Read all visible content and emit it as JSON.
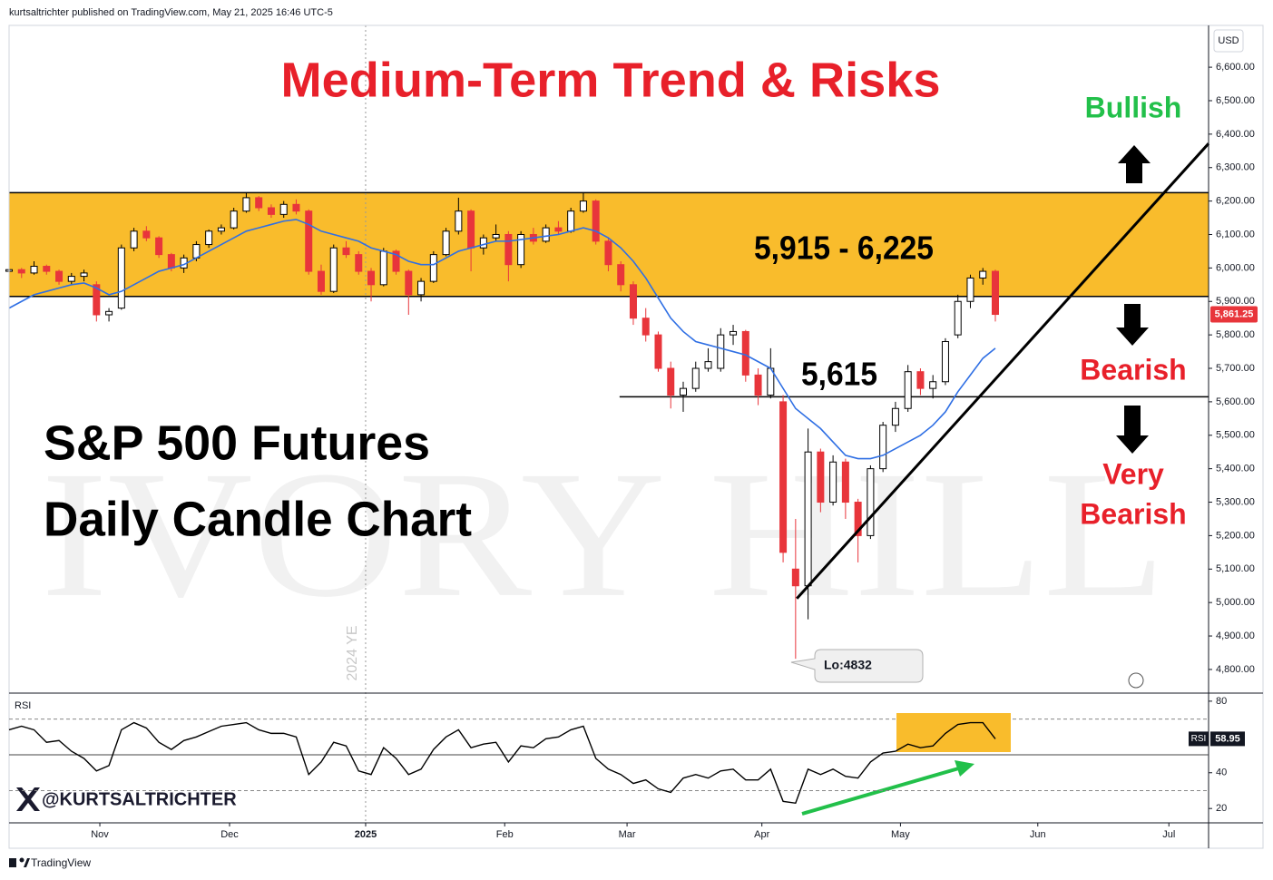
{
  "header": "kurtsaltrichter published on TradingView.com, May 21, 2025 16:46 UTC-5",
  "footer": "TradingView",
  "chart_data": {
    "type": "candlestick",
    "title": "Medium-Term Trend & Risks",
    "subtitle_lines": [
      "S&P 500 Futures",
      "Daily Candle Chart"
    ],
    "currency": "USD",
    "watermark": "IVORY HILL",
    "handle": "@KURTSALTRICHTER",
    "up_color": "#ffffff",
    "down_color": "#e8353b",
    "candles": [
      [
        5990,
        6010,
        5975,
        5995
      ],
      [
        5995,
        6000,
        5970,
        5985
      ],
      [
        5985,
        6020,
        5980,
        6005
      ],
      [
        6005,
        6010,
        5980,
        5990
      ],
      [
        5990,
        5995,
        5950,
        5960
      ],
      [
        5960,
        5985,
        5950,
        5975
      ],
      [
        5975,
        5995,
        5960,
        5985
      ],
      [
        5950,
        5960,
        5840,
        5860
      ],
      [
        5860,
        5880,
        5840,
        5870
      ],
      [
        5880,
        6070,
        5875,
        6060
      ],
      [
        6060,
        6120,
        6050,
        6110
      ],
      [
        6110,
        6125,
        6080,
        6090
      ],
      [
        6090,
        6095,
        6030,
        6040
      ],
      [
        6040,
        6045,
        5990,
        6000
      ],
      [
        6000,
        6040,
        5985,
        6030
      ],
      [
        6030,
        6080,
        6020,
        6070
      ],
      [
        6070,
        6115,
        6060,
        6110
      ],
      [
        6110,
        6130,
        6100,
        6120
      ],
      [
        6120,
        6180,
        6115,
        6170
      ],
      [
        6170,
        6225,
        6165,
        6210
      ],
      [
        6210,
        6215,
        6170,
        6180
      ],
      [
        6180,
        6190,
        6150,
        6160
      ],
      [
        6160,
        6200,
        6150,
        6190
      ],
      [
        6190,
        6205,
        6160,
        6170
      ],
      [
        6170,
        6175,
        5980,
        5990
      ],
      [
        5990,
        6010,
        5920,
        5930
      ],
      [
        5930,
        6070,
        5925,
        6060
      ],
      [
        6060,
        6080,
        6030,
        6040
      ],
      [
        6040,
        6050,
        5980,
        5990
      ],
      [
        5990,
        6000,
        5900,
        5950
      ],
      [
        5950,
        6060,
        5945,
        6050
      ],
      [
        6050,
        6055,
        5980,
        5990
      ],
      [
        5990,
        5995,
        5860,
        5920
      ],
      [
        5920,
        5970,
        5900,
        5960
      ],
      [
        5960,
        6050,
        5955,
        6040
      ],
      [
        6040,
        6120,
        6035,
        6110
      ],
      [
        6110,
        6210,
        6100,
        6170
      ],
      [
        6170,
        6175,
        5990,
        6060
      ],
      [
        6060,
        6100,
        6040,
        6090
      ],
      [
        6090,
        6130,
        6080,
        6100
      ],
      [
        6100,
        6110,
        5960,
        6010
      ],
      [
        6010,
        6110,
        6000,
        6100
      ],
      [
        6100,
        6120,
        6070,
        6080
      ],
      [
        6080,
        6130,
        6075,
        6120
      ],
      [
        6120,
        6140,
        6100,
        6110
      ],
      [
        6110,
        6180,
        6105,
        6170
      ],
      [
        6170,
        6225,
        6165,
        6200
      ],
      [
        6200,
        6205,
        6070,
        6080
      ],
      [
        6080,
        6090,
        5990,
        6010
      ],
      [
        6010,
        6020,
        5930,
        5950
      ],
      [
        5950,
        5960,
        5830,
        5850
      ],
      [
        5850,
        5880,
        5780,
        5800
      ],
      [
        5800,
        5810,
        5690,
        5700
      ],
      [
        5700,
        5720,
        5580,
        5620
      ],
      [
        5620,
        5660,
        5570,
        5640
      ],
      [
        5640,
        5720,
        5630,
        5700
      ],
      [
        5700,
        5760,
        5690,
        5720
      ],
      [
        5700,
        5820,
        5690,
        5800
      ],
      [
        5800,
        5830,
        5770,
        5810
      ],
      [
        5810,
        5815,
        5660,
        5680
      ],
      [
        5680,
        5700,
        5590,
        5620
      ],
      [
        5620,
        5760,
        5610,
        5700
      ],
      [
        5600,
        5620,
        5120,
        5150
      ],
      [
        5100,
        5250,
        4832,
        5050
      ],
      [
        5050,
        5520,
        4950,
        5450
      ],
      [
        5450,
        5460,
        5270,
        5300
      ],
      [
        5300,
        5440,
        5290,
        5420
      ],
      [
        5420,
        5430,
        5250,
        5300
      ],
      [
        5300,
        5310,
        5120,
        5200
      ],
      [
        5200,
        5410,
        5190,
        5400
      ],
      [
        5400,
        5540,
        5390,
        5530
      ],
      [
        5530,
        5600,
        5510,
        5580
      ],
      [
        5580,
        5710,
        5570,
        5690
      ],
      [
        5690,
        5700,
        5620,
        5640
      ],
      [
        5640,
        5680,
        5610,
        5660
      ],
      [
        5660,
        5790,
        5650,
        5780
      ],
      [
        5800,
        5920,
        5790,
        5900
      ],
      [
        5900,
        5980,
        5880,
        5970
      ],
      [
        5970,
        6000,
        5950,
        5990
      ],
      [
        5990,
        5995,
        5840,
        5861.25
      ]
    ],
    "ma": {
      "color": "#2f6fe4",
      "values": [
        5880,
        5900,
        5920,
        5930,
        5940,
        5950,
        5955,
        5940,
        5920,
        5930,
        5950,
        5970,
        5990,
        6000,
        6010,
        6030,
        6050,
        6070,
        6090,
        6110,
        6120,
        6130,
        6140,
        6145,
        6130,
        6110,
        6100,
        6090,
        6080,
        6060,
        6050,
        6040,
        6020,
        6010,
        6010,
        6030,
        6050,
        6060,
        6070,
        6080,
        6080,
        6085,
        6090,
        6095,
        6100,
        6110,
        6120,
        6110,
        6090,
        6060,
        6020,
        5970,
        5910,
        5850,
        5810,
        5780,
        5770,
        5760,
        5750,
        5740,
        5720,
        5700,
        5640,
        5580,
        5550,
        5520,
        5480,
        5440,
        5430,
        5430,
        5440,
        5460,
        5480,
        5500,
        5530,
        5570,
        5630,
        5680,
        5730,
        5760
      ]
    },
    "xlim": [
      0,
      96.08
    ],
    "xticks": [
      {
        "value": 7.27,
        "label": "Nov"
      },
      {
        "value": 17.66,
        "label": "Dec"
      },
      {
        "value": 28.56,
        "label": "2025"
      },
      {
        "value": 39.7,
        "label": "Feb"
      },
      {
        "value": 49.5,
        "label": "Mar"
      },
      {
        "value": 60.3,
        "label": "Apr"
      },
      {
        "value": 71.4,
        "label": "May"
      },
      {
        "value": 82.4,
        "label": "Jun"
      },
      {
        "value": 92.9,
        "label": "Jul"
      }
    ],
    "ylim": [
      4732,
      6725
    ],
    "yticks": [
      {
        "value": 4800,
        "label": "4,800.00"
      },
      {
        "value": 4900,
        "label": "4,900.00"
      },
      {
        "value": 5000,
        "label": "5,000.00"
      },
      {
        "value": 5100,
        "label": "5,100.00"
      },
      {
        "value": 5200,
        "label": "5,200.00"
      },
      {
        "value": 5300,
        "label": "5,300.00"
      },
      {
        "value": 5400,
        "label": "5,400.00"
      },
      {
        "value": 5500,
        "label": "5,500.00"
      },
      {
        "value": 5600,
        "label": "5,600.00"
      },
      {
        "value": 5700,
        "label": "5,700.00"
      },
      {
        "value": 5800,
        "label": "5,800.00"
      },
      {
        "value": 5900,
        "label": "5,900.00"
      },
      {
        "value": 6000,
        "label": "6,000.00"
      },
      {
        "value": 6100,
        "label": "6,100.00"
      },
      {
        "value": 6200,
        "label": "6,200.00"
      },
      {
        "value": 6300,
        "label": "6,300.00"
      },
      {
        "value": 6400,
        "label": "6,400.00"
      },
      {
        "value": 6500,
        "label": "6,500.00"
      },
      {
        "value": 6600,
        "label": "6,600.00"
      }
    ],
    "last_price_label": "5,861.25",
    "zone": {
      "range": [
        5915,
        6225
      ],
      "label": "5,915 - 6,225",
      "color": "#f9bc2c"
    },
    "support": {
      "value": 5615,
      "label": "5,615",
      "start": 48.9
    },
    "trendline": {
      "x": [
        63.1,
        96.08
      ],
      "y": [
        5012,
        6372
      ]
    },
    "low_annotation": "Lo:4832",
    "year_end_marker": {
      "x": 28.56,
      "label": "2024 YE"
    },
    "signals": [
      {
        "lines": [
          "Bullish"
        ],
        "color": "#22c04a"
      },
      {
        "lines": [
          "Bearish"
        ],
        "color": "#e8202a"
      },
      {
        "lines": [
          "Very",
          "Bearish"
        ],
        "color": "#e8202a"
      }
    ],
    "rsi": {
      "title": "RSI",
      "color": "#000000",
      "ylim": [
        13,
        84
      ],
      "yticks": [
        20,
        40,
        80
      ],
      "bands": [
        30,
        50,
        70
      ],
      "values": [
        64,
        66,
        64,
        57,
        58,
        52,
        48,
        41,
        44,
        64,
        68,
        65,
        57,
        53,
        58,
        60,
        63,
        66,
        67,
        68,
        64,
        62,
        62,
        60,
        39,
        46,
        57,
        55,
        41,
        39,
        54,
        48,
        39,
        42,
        53,
        60,
        64,
        54,
        56,
        57,
        46,
        55,
        54,
        59,
        60,
        64,
        66,
        48,
        42,
        39,
        34,
        36,
        31,
        29,
        37,
        39,
        37,
        41,
        42,
        36,
        36,
        42,
        24,
        23,
        42,
        39,
        42,
        38,
        37,
        46,
        51,
        52,
        56,
        54,
        55,
        62,
        67,
        68,
        68,
        58.95
      ]
    }
  }
}
